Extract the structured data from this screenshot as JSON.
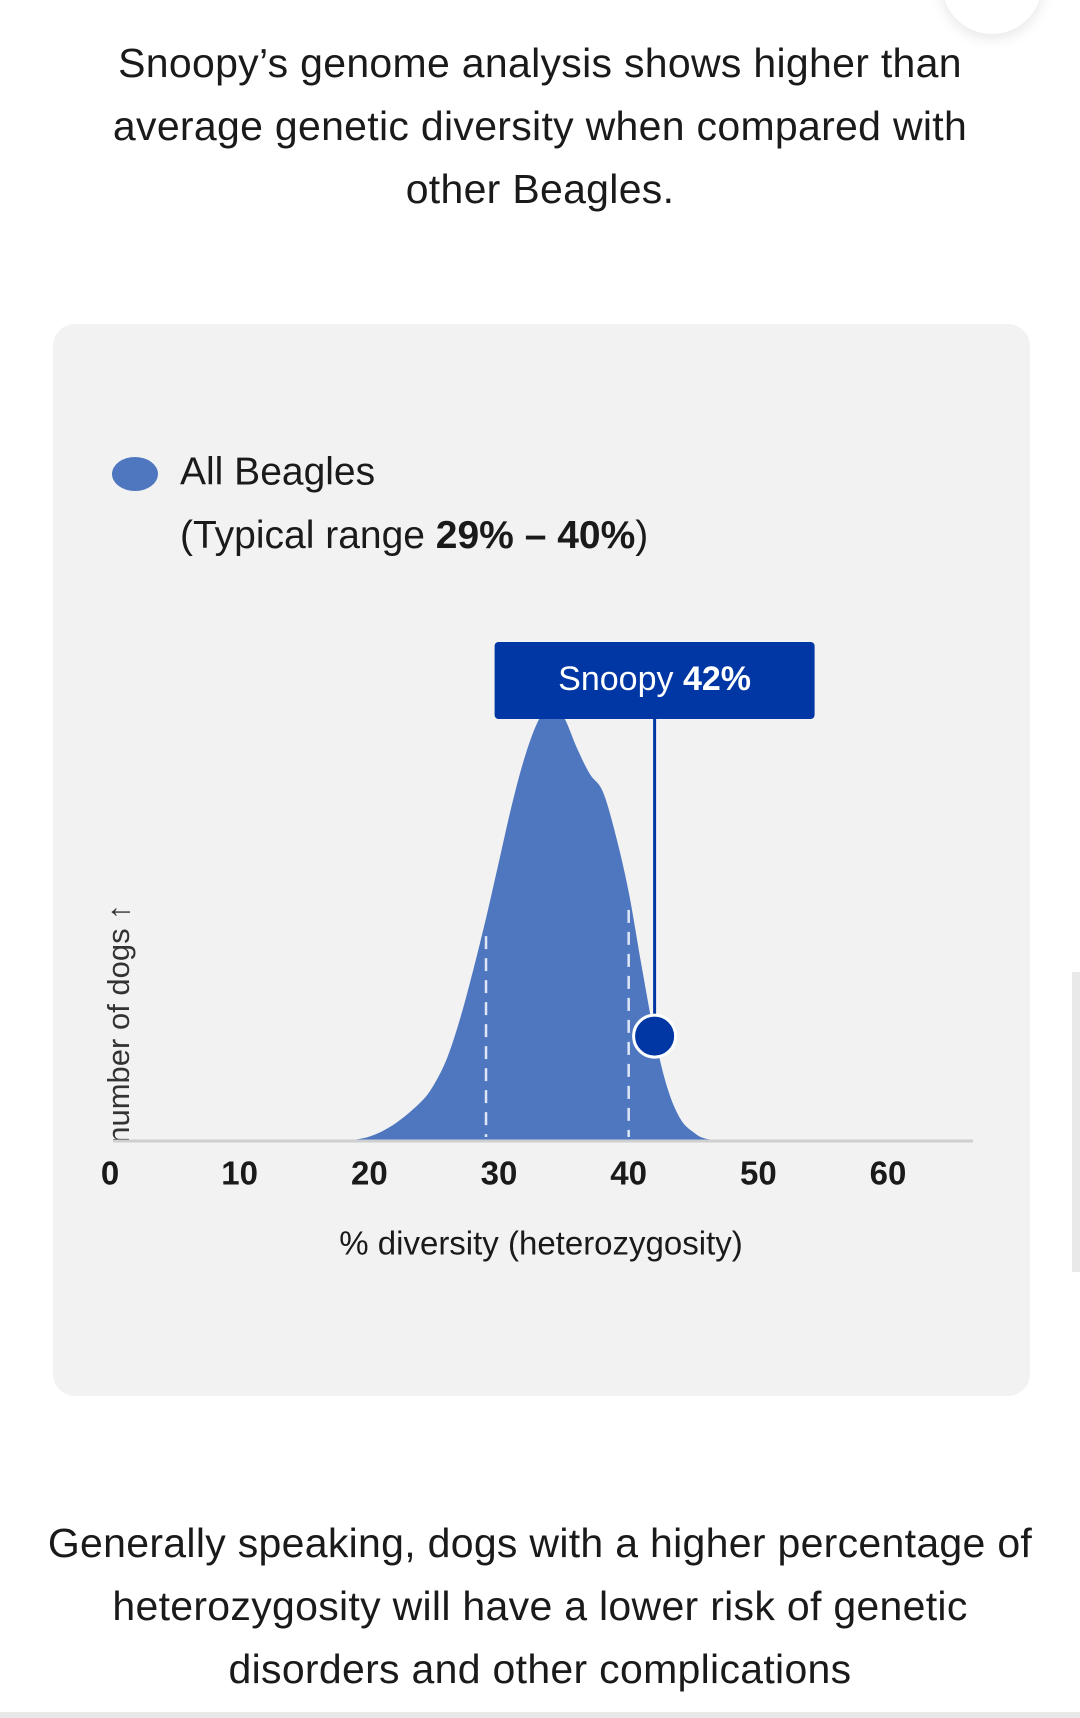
{
  "intro_text": "Snoopy’s genome analysis shows higher than average genetic diversity when compared with other Beagles.",
  "chart_data": {
    "type": "area",
    "legend": {
      "series_label": "All Beagles",
      "range_prefix": "(Typical range ",
      "range_value": "29% – 40%",
      "range_suffix": ")"
    },
    "ylabel": "number of dogs ↑",
    "xlabel": "% diversity (heterozygosity)",
    "xlim": [
      0,
      60
    ],
    "x_ticks": [
      "0",
      "10",
      "20",
      "30",
      "40",
      "50",
      "60"
    ],
    "x_tick_values": [
      0,
      10,
      20,
      30,
      40,
      50,
      60
    ],
    "typical_range": [
      29,
      40
    ],
    "marker": {
      "name": "Snoopy",
      "value_label": "42%",
      "x": 42
    },
    "series": [
      {
        "name": "All Beagles",
        "x": [
          18,
          20,
          22,
          24,
          25,
          26,
          27,
          28,
          29,
          30,
          31,
          32,
          33,
          34,
          35,
          36,
          37,
          38,
          39,
          40,
          41,
          42,
          43,
          44,
          45,
          46,
          48
        ],
        "y": [
          0,
          0.01,
          0.04,
          0.09,
          0.13,
          0.19,
          0.28,
          0.39,
          0.51,
          0.64,
          0.77,
          0.88,
          0.96,
          1.0,
          0.97,
          0.9,
          0.84,
          0.8,
          0.7,
          0.57,
          0.4,
          0.24,
          0.12,
          0.05,
          0.02,
          0.005,
          0
        ]
      }
    ],
    "colors": {
      "area": "#4e77c0",
      "marker": "#0037a4",
      "axis": "#cfcfcf",
      "range_lines": "#dfe7f6"
    },
    "grid": false
  },
  "body_text": "Generally speaking, dogs with a higher percentage of heterozygosity will have a lower risk of genetic disorders and other complications"
}
